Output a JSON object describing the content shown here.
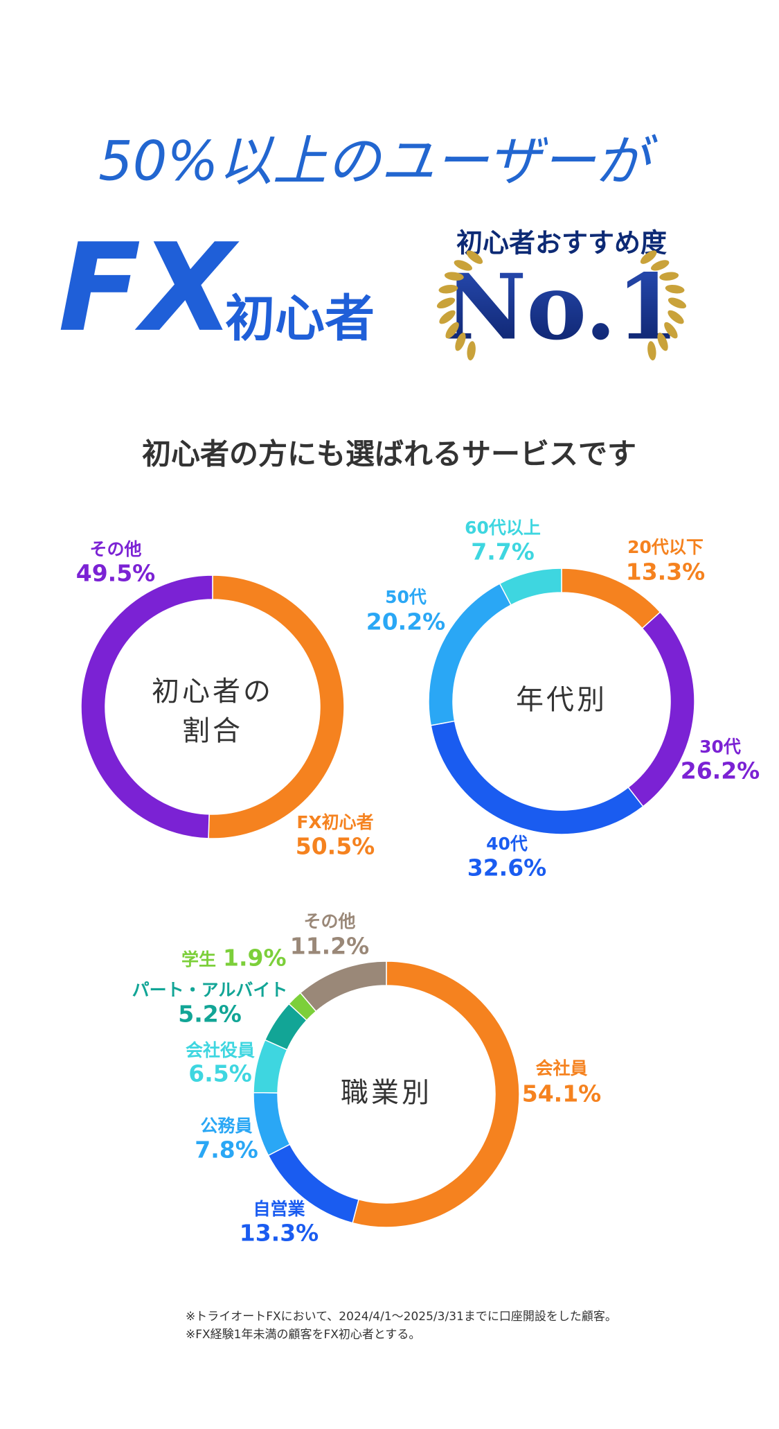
{
  "header": {
    "line1": "50%以上のユーザーが",
    "fx": "FX",
    "beginner": "初心者",
    "badge_caption": "初心者おすすめ度",
    "badge_rank": "No.1"
  },
  "subtitle": "初心者の方にも選ばれるサービスです",
  "chart_data": [
    {
      "type": "donut",
      "center_label": [
        "初心者の",
        "割合"
      ],
      "categories": [
        "FX初心者",
        "その他"
      ],
      "values": [
        50.5,
        49.5
      ],
      "value_labels": [
        "50.5%",
        "49.5%"
      ],
      "colors": [
        "#f5821f",
        "#7b22d4"
      ]
    },
    {
      "type": "donut",
      "center_label": [
        "年代別"
      ],
      "categories": [
        "20代以下",
        "30代",
        "40代",
        "50代",
        "60代以上"
      ],
      "values": [
        13.3,
        26.2,
        32.6,
        20.2,
        7.7
      ],
      "value_labels": [
        "13.3%",
        "26.2%",
        "32.6%",
        "20.2%",
        "7.7%"
      ],
      "colors": [
        "#f5821f",
        "#7b22d4",
        "#1a5cf0",
        "#2aa7f5",
        "#3ed6e0"
      ]
    },
    {
      "type": "donut",
      "center_label": [
        "職業別"
      ],
      "categories": [
        "会社員",
        "自営業",
        "公務員",
        "会社役員",
        "パート・アルバイト",
        "学生",
        "その他"
      ],
      "values": [
        54.1,
        13.3,
        7.8,
        6.5,
        5.2,
        1.9,
        11.2
      ],
      "value_labels": [
        "54.1%",
        "13.3%",
        "7.8%",
        "6.5%",
        "5.2%",
        "1.9%",
        "11.2%"
      ],
      "colors": [
        "#f5821f",
        "#1a5cf0",
        "#2aa7f5",
        "#3ed6e0",
        "#12a596",
        "#7ccf3a",
        "#9a8878"
      ]
    }
  ],
  "notes": [
    "※トライオートFXにおいて、2024/4/1〜2025/3/31までに口座開設をした顧客。",
    "※FX経験1年未満の顧客をFX初心者とする。"
  ]
}
